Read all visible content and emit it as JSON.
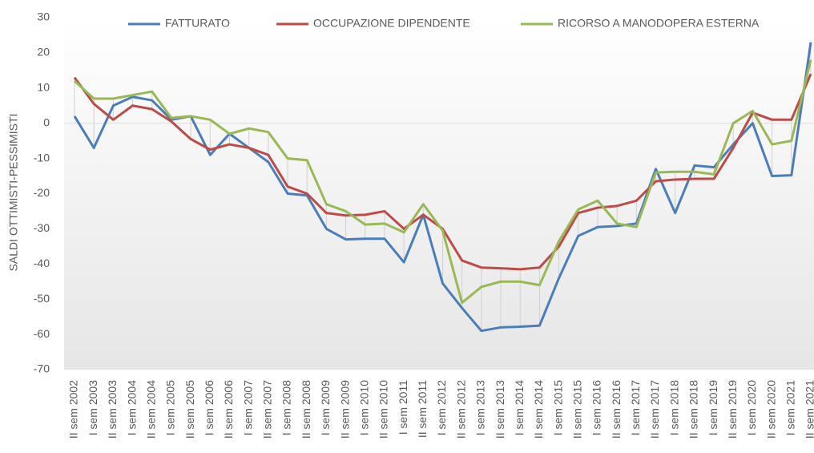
{
  "chart_data": {
    "type": "line",
    "y_label": "SALDI OTTIMISTI-PESSIMISTI",
    "categories": [
      "II sem 2002",
      "I sem 2003",
      "II sem 2003",
      "I sem 2004",
      "II sem 2004",
      "I sem 2005",
      "II sem 2005",
      "I sem 2006",
      "II sem 2006",
      "I sem 2007",
      "II sem 2007",
      "I sem 2008",
      "II sem 2008",
      "I sem 2009",
      "II sem 2009",
      "I sem 2010",
      "II sem 2010",
      "I sem 2011",
      "II sem 2011",
      "I sem 2012",
      "II sem 2012",
      "I sem 2013",
      "II sem 2013",
      "I sem 2014",
      "II sem 2014",
      "I sem 2015",
      "II sem 2015",
      "I sem 2016",
      "II sem 2016",
      "I sem 2017",
      "II sem 2017",
      "I sem 2018",
      "II sem 2018",
      "I sem 2019",
      "II sem 2019",
      "I sem 2020",
      "II sem 2020",
      "I sem 2021",
      "II sem 2021"
    ],
    "series": [
      {
        "name": "FATTURATO",
        "color": "#4a7ebb",
        "values": [
          2,
          -7,
          5,
          7.5,
          6.5,
          1,
          2,
          -9,
          -3,
          -7,
          -11,
          -20,
          -20.5,
          -30,
          -33,
          -32.8,
          -32.8,
          -39.5,
          -26,
          -45.5,
          -52.5,
          -59,
          -58,
          -57.8,
          -57.5,
          -44,
          -32,
          -29.5,
          -29.2,
          -28.5,
          -13,
          -25.5,
          -12,
          -12.5,
          -6,
          0,
          -15,
          -14.8,
          23
        ]
      },
      {
        "name": "OCCUPAZIONE DIPENDENTE",
        "color": "#be4b48",
        "values": [
          13,
          5.5,
          1,
          5,
          4,
          0.5,
          -4.5,
          -7.5,
          -6,
          -7,
          -9,
          -18,
          -20,
          -25.5,
          -26.2,
          -26,
          -25,
          -30,
          -26,
          -30,
          -39,
          -41,
          -41.2,
          -41.5,
          -41,
          -35,
          -25.5,
          -24,
          -23.5,
          -22,
          -16.5,
          -16,
          -15.8,
          -15.8,
          -7,
          3,
          1,
          1,
          14
        ]
      },
      {
        "name": "RICORSO A MANODOPERA ESTERNA",
        "color": "#98b954",
        "values": [
          12,
          7,
          7,
          8,
          9,
          1.5,
          2,
          1,
          -3,
          -1.5,
          -2.5,
          -10,
          -10.5,
          -23,
          -25,
          -28.8,
          -28.5,
          -31,
          -23,
          -30.5,
          -51,
          -46.5,
          -45,
          -45,
          -46,
          -33.5,
          -24.5,
          -22,
          -28.5,
          -29.5,
          -14,
          -13.8,
          -13.8,
          -14.5,
          0,
          3.5,
          -6,
          -5,
          18
        ]
      }
    ],
    "ylim": [
      -70,
      30
    ],
    "yticks": [
      -70,
      -60,
      -50,
      -40,
      -30,
      -20,
      -10,
      0,
      10,
      20,
      30
    ],
    "grid": false,
    "legend": "top"
  }
}
